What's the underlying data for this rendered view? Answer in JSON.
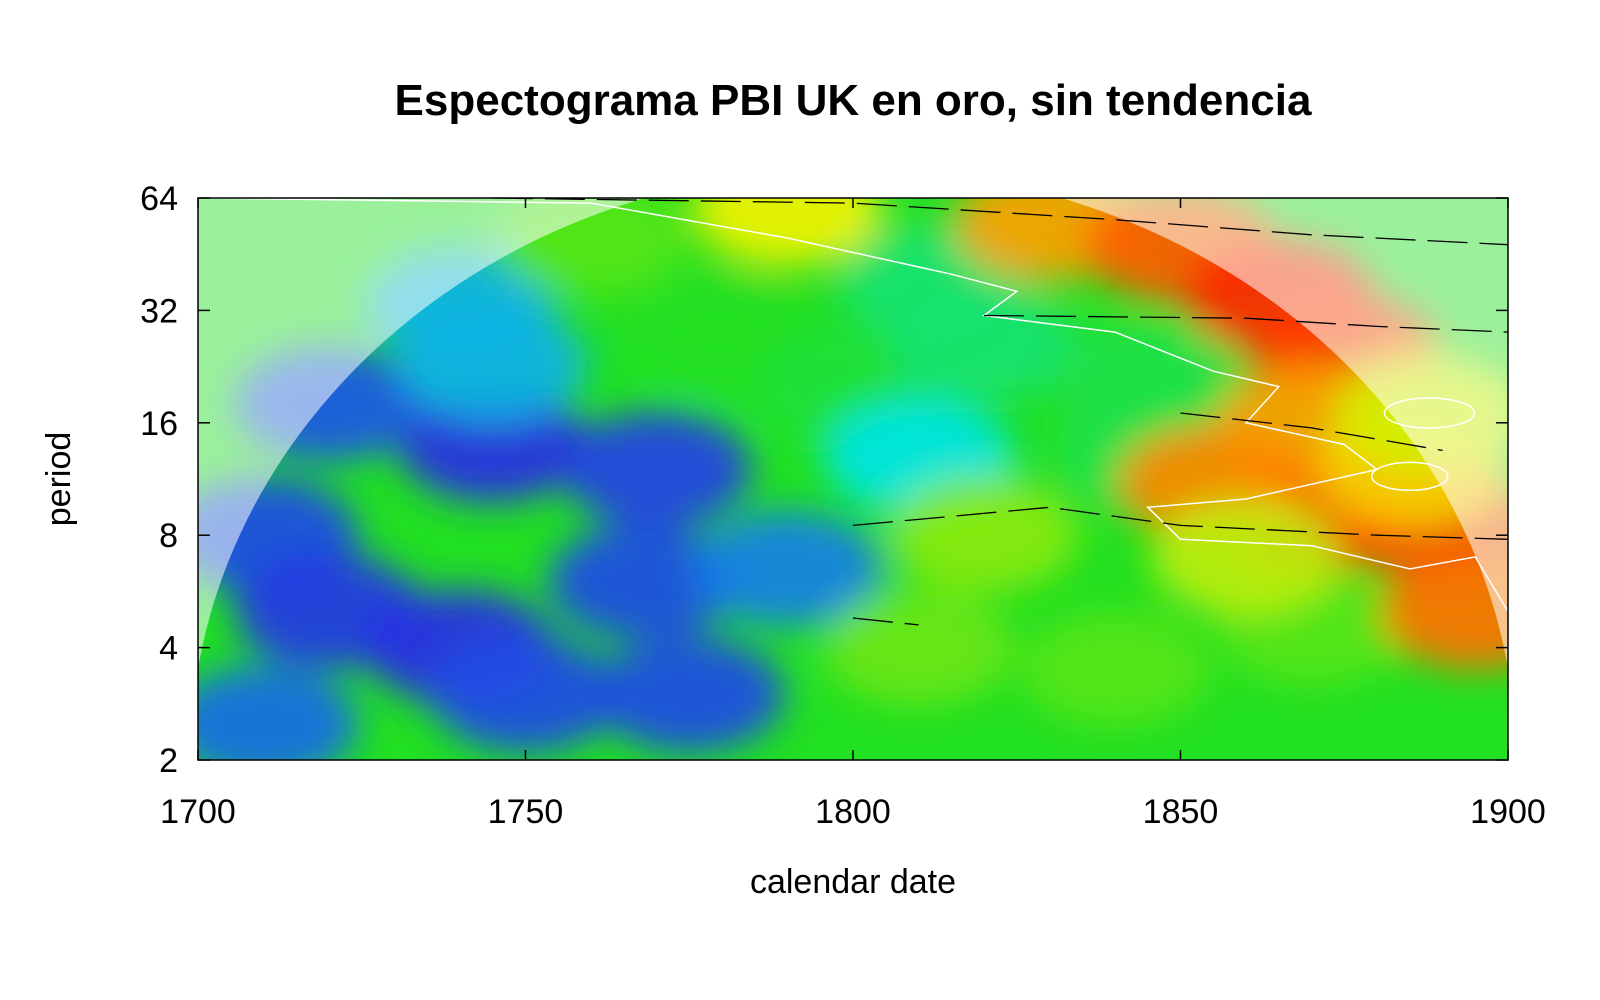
{
  "chart_data": {
    "type": "heatmap",
    "title": "Espectograma PBI UK en oro, sin tendencia",
    "xlabel": "calendar date",
    "ylabel": "period",
    "xlim": [
      1700,
      1900
    ],
    "ylim": [
      2,
      64
    ],
    "y_scale": "log2",
    "x_ticks": [
      1700,
      1750,
      1800,
      1850,
      1900
    ],
    "y_ticks": [
      2,
      4,
      8,
      16,
      32,
      64
    ],
    "colormap": "rainbow (blue = low power, red = high power)",
    "colors": {
      "low": "#2a18e6",
      "mid_low": "#00e5e5",
      "mid": "#22e022",
      "mid_high": "#f2f200",
      "high": "#ff8800",
      "max": "#ff0000"
    },
    "cone_of_influence": "shaded outside cone",
    "significance_contours": "white",
    "ridges": "black",
    "power_regions": [
      {
        "x": 1745,
        "y": 14,
        "level": 0.02
      },
      {
        "x": 1770,
        "y": 12,
        "level": 0.04
      },
      {
        "x": 1720,
        "y": 18,
        "level": 0.06
      },
      {
        "x": 1710,
        "y": 8,
        "level": 0.05
      },
      {
        "x": 1720,
        "y": 5,
        "level": 0.03
      },
      {
        "x": 1740,
        "y": 4,
        "level": 0.02
      },
      {
        "x": 1750,
        "y": 3,
        "level": 0.05
      },
      {
        "x": 1775,
        "y": 3,
        "level": 0.05
      },
      {
        "x": 1768,
        "y": 6,
        "level": 0.05
      },
      {
        "x": 1790,
        "y": 6.5,
        "level": 0.1
      },
      {
        "x": 1710,
        "y": 2.5,
        "level": 0.08
      },
      {
        "x": 1740,
        "y": 33,
        "level": 0.15
      },
      {
        "x": 1745,
        "y": 23,
        "level": 0.15
      },
      {
        "x": 1780,
        "y": 28,
        "level": 0.45
      },
      {
        "x": 1800,
        "y": 20,
        "level": 0.42
      },
      {
        "x": 1810,
        "y": 13,
        "level": 0.2
      },
      {
        "x": 1812,
        "y": 38,
        "level": 0.35
      },
      {
        "x": 1820,
        "y": 26,
        "level": 0.35
      },
      {
        "x": 1845,
        "y": 21,
        "level": 0.4
      },
      {
        "x": 1845,
        "y": 13,
        "level": 0.4
      },
      {
        "x": 1760,
        "y": 50,
        "level": 0.5
      },
      {
        "x": 1790,
        "y": 60,
        "level": 0.65
      },
      {
        "x": 1810,
        "y": 4,
        "level": 0.52
      },
      {
        "x": 1840,
        "y": 3.5,
        "level": 0.5
      },
      {
        "x": 1870,
        "y": 4.5,
        "level": 0.5
      },
      {
        "x": 1820,
        "y": 8,
        "level": 0.55
      },
      {
        "x": 1830,
        "y": 55,
        "level": 0.78
      },
      {
        "x": 1850,
        "y": 48,
        "level": 0.88
      },
      {
        "x": 1865,
        "y": 35,
        "level": 0.95
      },
      {
        "x": 1875,
        "y": 25,
        "level": 0.92
      },
      {
        "x": 1870,
        "y": 16,
        "level": 0.78
      },
      {
        "x": 1870,
        "y": 9,
        "level": 0.95
      },
      {
        "x": 1890,
        "y": 8.5,
        "level": 0.9
      },
      {
        "x": 1855,
        "y": 11,
        "level": 0.82
      },
      {
        "x": 1885,
        "y": 12,
        "level": 0.7
      },
      {
        "x": 1895,
        "y": 5,
        "level": 0.85
      },
      {
        "x": 1860,
        "y": 7,
        "level": 0.6
      },
      {
        "x": 1888,
        "y": 17,
        "level": 0.62
      }
    ]
  }
}
